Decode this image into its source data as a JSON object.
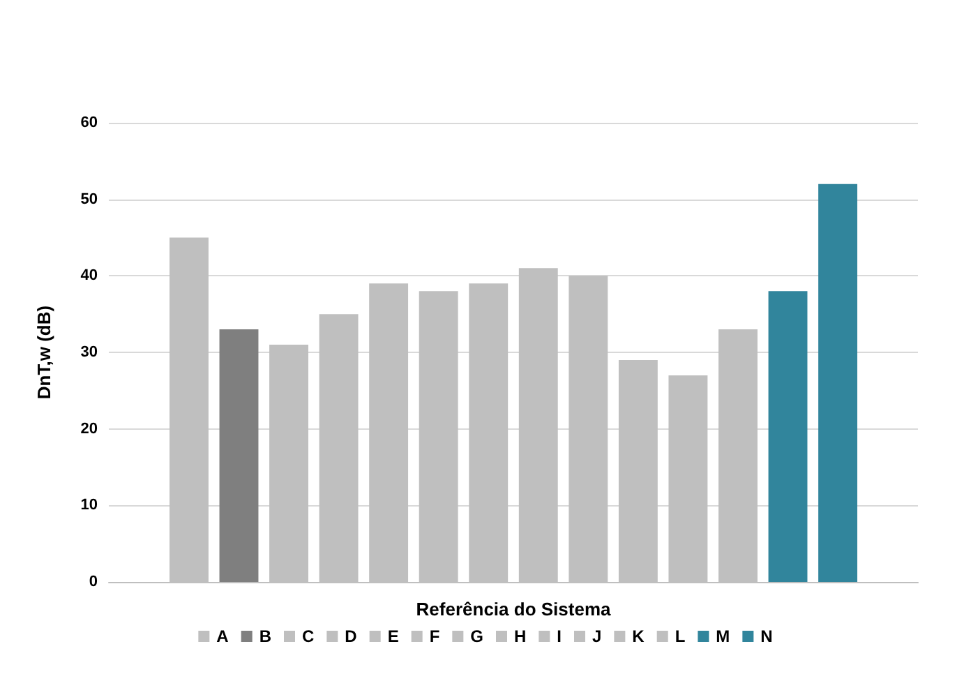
{
  "chart_data": {
    "type": "bar",
    "xlabel": "Referência do Sistema",
    "ylabel": "DnT,w (dB)",
    "categories": [
      null
    ],
    "series": [
      {
        "name": "A",
        "color": "#bfbfbf",
        "values": [
          45
        ]
      },
      {
        "name": "B",
        "color": "#7f7f7f",
        "values": [
          33
        ]
      },
      {
        "name": "C",
        "color": "#bfbfbf",
        "values": [
          31
        ]
      },
      {
        "name": "D",
        "color": "#bfbfbf",
        "values": [
          35
        ]
      },
      {
        "name": "E",
        "color": "#bfbfbf",
        "values": [
          39
        ]
      },
      {
        "name": "F",
        "color": "#bfbfbf",
        "values": [
          38
        ]
      },
      {
        "name": "G",
        "color": "#bfbfbf",
        "values": [
          39
        ]
      },
      {
        "name": "H",
        "color": "#bfbfbf",
        "values": [
          41
        ]
      },
      {
        "name": "I",
        "color": "#bfbfbf",
        "values": [
          40
        ]
      },
      {
        "name": "J",
        "color": "#bfbfbf",
        "values": [
          29
        ]
      },
      {
        "name": "K",
        "color": "#bfbfbf",
        "values": [
          27
        ]
      },
      {
        "name": "L",
        "color": "#bfbfbf",
        "values": [
          33
        ]
      },
      {
        "name": "M",
        "color": "#31859c",
        "values": [
          38
        ]
      },
      {
        "name": "N",
        "color": "#31859c",
        "values": [
          52
        ]
      }
    ],
    "ylim": [
      0,
      60
    ],
    "yticks": [
      0,
      10,
      20,
      30,
      40,
      50,
      60
    ],
    "grid": "y",
    "legend": "bottom"
  }
}
